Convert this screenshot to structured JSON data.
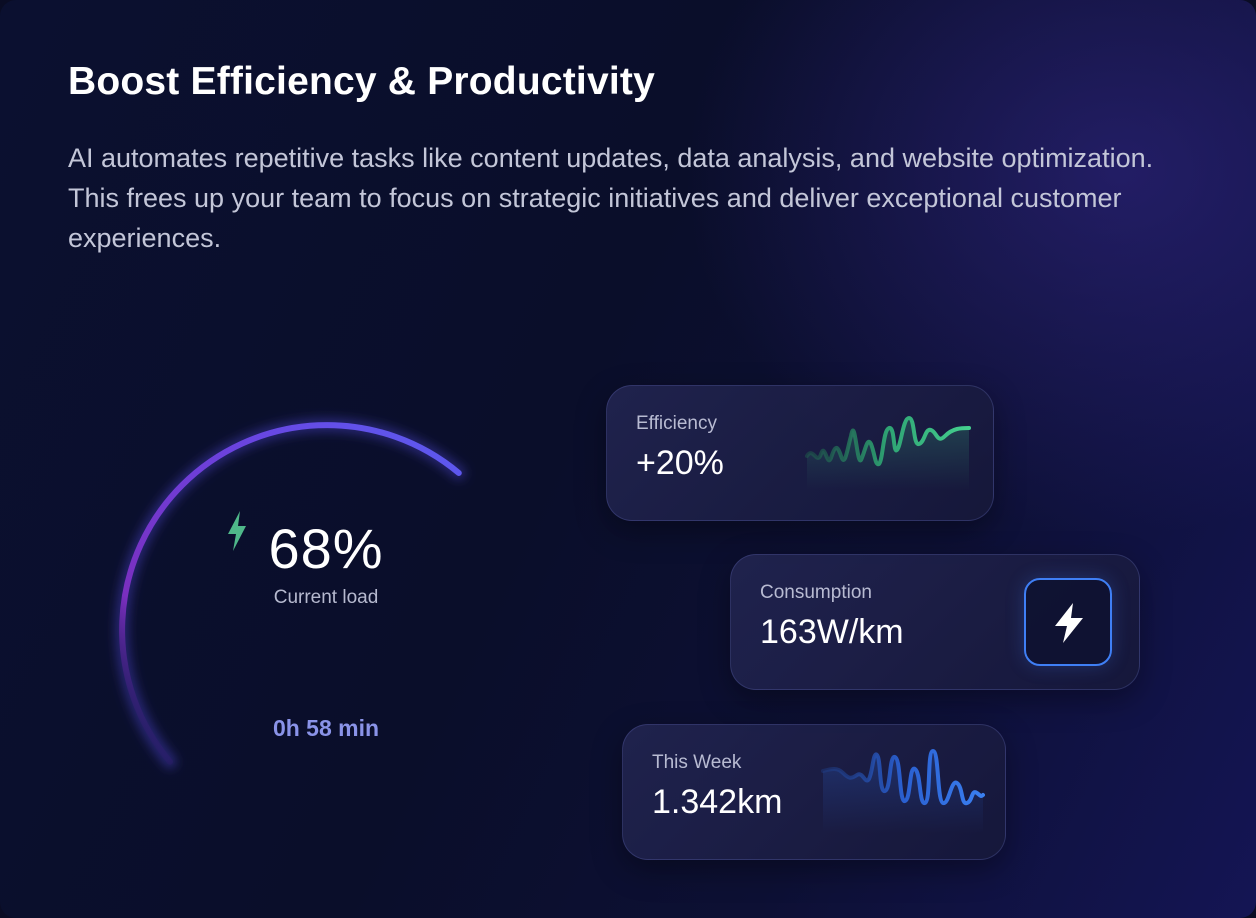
{
  "header": {
    "title": "Boost Efficiency & Productivity",
    "description": "AI automates repetitive tasks like content updates, data analysis, and website optimization. This frees up your team to focus on strategic initiatives and deliver exceptional customer experiences."
  },
  "gauge": {
    "value_text": "68%",
    "value_fraction": 0.68,
    "label": "Current load",
    "time_remaining": "0h 58 min",
    "icon": "lightning-bolt-icon",
    "colors": {
      "arc_start": "#5b5cf0",
      "arc_end": "#7a2fbf",
      "icon": "#4fb88a"
    }
  },
  "cards": {
    "efficiency": {
      "label": "Efficiency",
      "value": "+20%",
      "color": "#3fbf85",
      "icon": "sparkline-icon"
    },
    "consumption": {
      "label": "Consumption",
      "value": "163W/km",
      "icon": "lightning-bolt-icon",
      "accent": "#3f7ff5"
    },
    "week": {
      "label": "This Week",
      "value": "1.342km",
      "color": "#2f6fe8",
      "icon": "sparkline-icon"
    }
  }
}
